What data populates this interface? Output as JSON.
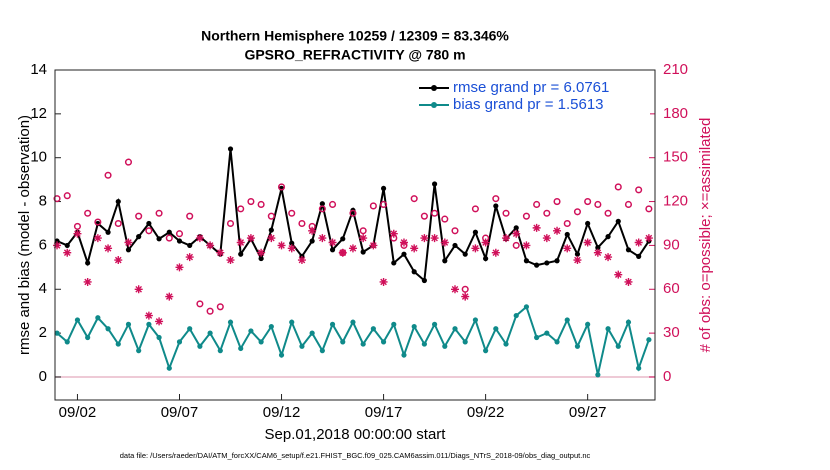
{
  "chart_data": {
    "type": "line",
    "title": "Northern Hemisphere 10259 / 12309 = 83.346%",
    "subtitle": "GPSRO_REFRACTIVITY @ 780 m",
    "xlabel": "Sep.01,2018 00:00:00 start",
    "ylabel": "rmse and bias (model - observation)",
    "y2label": "# of obs: o=possible; ×=assimilated",
    "footnote": "data file: /Users/raeder/DAI/ATM_forcXX/CAM6_setup/f.e21.FHIST_BGC.f09_025.CAM6assim.011/Diags_NTrS_2018-09/obs_diag_output.nc",
    "legend_position": "upper right",
    "x": [
      0,
      0.5,
      1,
      1.5,
      2,
      2.5,
      3,
      3.5,
      4,
      4.5,
      5,
      5.5,
      6,
      6.5,
      7,
      7.5,
      8,
      8.5,
      9,
      9.5,
      10,
      10.5,
      11,
      11.5,
      12,
      12.5,
      13,
      13.5,
      14,
      14.5,
      15,
      15.5,
      16,
      16.5,
      17,
      17.5,
      18,
      18.5,
      19,
      19.5,
      20,
      20.5,
      21,
      21.5,
      22,
      22.5,
      23,
      23.5,
      24,
      24.5,
      25,
      25.5,
      26,
      26.5,
      27,
      27.5,
      28,
      28.5,
      29
    ],
    "xlim": [
      -0.1,
      29.3
    ],
    "xticks": [
      {
        "value": 1,
        "label": "09/02"
      },
      {
        "value": 6,
        "label": "09/07"
      },
      {
        "value": 11,
        "label": "09/12"
      },
      {
        "value": 16,
        "label": "09/17"
      },
      {
        "value": 21,
        "label": "09/22"
      },
      {
        "value": 26,
        "label": "09/27"
      }
    ],
    "ylim": [
      -1.05,
      14
    ],
    "yticks": [
      0,
      2,
      4,
      6,
      8,
      10,
      12,
      14
    ],
    "y2lim": [
      -15.75,
      210
    ],
    "y2ticks": [
      0,
      30,
      60,
      90,
      120,
      150,
      180,
      210
    ],
    "y2color": "#d0105a",
    "series": [
      {
        "name": "rmse grand pr = 6.0761",
        "color": "#000000",
        "marker": "dot",
        "line": true,
        "values": [
          6.2,
          6.0,
          6.6,
          5.2,
          7.0,
          6.6,
          8.0,
          5.8,
          6.4,
          7.0,
          6.3,
          6.6,
          6.2,
          6.0,
          6.4,
          6.0,
          5.6,
          10.4,
          5.6,
          6.3,
          5.4,
          6.7,
          8.6,
          6.1,
          5.5,
          6.2,
          7.9,
          5.8,
          6.3,
          7.6,
          5.7,
          6.0,
          8.6,
          5.2,
          5.6,
          4.8,
          4.4,
          8.8,
          5.3,
          6.0,
          5.6,
          6.6,
          5.4,
          7.8,
          6.3,
          6.8,
          5.3,
          5.1,
          5.2,
          5.3,
          6.5,
          5.6,
          7.0,
          5.9,
          6.4,
          7.1,
          5.8,
          5.5,
          6.2
        ]
      },
      {
        "name": "bias grand pr = 1.5613",
        "color": "#0f8a8a",
        "marker": "dot",
        "line": true,
        "values": [
          2.0,
          1.6,
          2.6,
          1.8,
          2.7,
          2.2,
          1.5,
          2.4,
          1.2,
          2.4,
          1.8,
          0.4,
          1.6,
          2.2,
          1.4,
          2.0,
          1.2,
          2.5,
          1.3,
          2.1,
          1.6,
          2.3,
          1.0,
          2.5,
          1.4,
          2.0,
          1.2,
          2.4,
          1.6,
          2.5,
          1.5,
          2.2,
          1.6,
          2.4,
          1.0,
          2.3,
          1.5,
          2.4,
          1.4,
          2.2,
          1.6,
          2.6,
          1.2,
          2.2,
          1.5,
          2.8,
          3.2,
          1.8,
          2.0,
          1.6,
          2.6,
          1.4,
          2.4,
          0.1,
          2.2,
          1.4,
          2.5,
          0.4,
          1.7
        ]
      },
      {
        "axis": "y2",
        "color": "#d0105a",
        "marker": "circle",
        "line": false,
        "values": [
          122,
          124,
          103,
          112,
          106,
          138,
          105,
          147,
          110,
          100,
          112,
          95,
          98,
          110,
          50,
          45,
          48,
          105,
          115,
          120,
          118,
          110,
          130,
          112,
          105,
          103,
          115,
          118,
          85,
          112,
          100,
          117,
          118,
          95,
          90,
          122,
          110,
          112,
          108,
          100,
          60,
          115,
          95,
          122,
          112,
          90,
          110,
          118,
          112,
          120,
          105,
          113,
          120,
          118,
          112,
          130,
          118,
          128,
          115
        ]
      },
      {
        "axis": "y2",
        "color": "#d0105a",
        "marker": "asterisk",
        "line": false,
        "values": [
          90,
          85,
          98,
          65,
          95,
          88,
          80,
          92,
          60,
          42,
          38,
          55,
          75,
          82,
          95,
          90,
          85,
          80,
          92,
          95,
          85,
          95,
          90,
          88,
          80,
          100,
          95,
          92,
          85,
          88,
          95,
          90,
          65,
          98,
          92,
          88,
          95,
          95,
          92,
          60,
          55,
          88,
          92,
          85,
          95,
          98,
          90,
          102,
          95,
          100,
          88,
          80,
          92,
          85,
          82,
          70,
          65,
          92,
          95
        ]
      }
    ]
  }
}
